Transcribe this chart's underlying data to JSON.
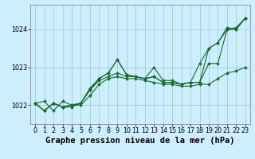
{
  "background_color": "#cceeff",
  "grid_color": "#99ccbb",
  "line_color": "#1a6b2a",
  "title": "Graphe pression niveau de la mer (hPa)",
  "ylim": [
    1021.5,
    1024.65
  ],
  "xlim": [
    -0.5,
    23.5
  ],
  "yticks": [
    1022,
    1023,
    1024
  ],
  "xticks": [
    0,
    1,
    2,
    3,
    4,
    5,
    6,
    7,
    8,
    9,
    10,
    11,
    12,
    13,
    14,
    15,
    16,
    17,
    18,
    19,
    20,
    21,
    22,
    23
  ],
  "series": [
    [
      1022.05,
      1022.1,
      1021.85,
      1022.1,
      1022.0,
      1022.0,
      1022.25,
      1022.55,
      1022.7,
      1022.75,
      1022.7,
      1022.7,
      1022.65,
      1022.6,
      1022.55,
      1022.55,
      1022.5,
      1022.5,
      1022.55,
      1022.55,
      1022.7,
      1022.85,
      1022.9,
      1023.0
    ],
    [
      1022.05,
      1021.85,
      1022.05,
      1021.95,
      1021.95,
      1022.05,
      1022.4,
      1022.65,
      1022.75,
      1022.85,
      1022.75,
      1022.75,
      1022.7,
      1022.75,
      1022.6,
      1022.6,
      1022.55,
      1022.6,
      1022.6,
      1023.1,
      1023.1,
      1024.0,
      1024.0,
      1024.3
    ],
    [
      1022.05,
      1021.85,
      1022.05,
      1021.95,
      1022.0,
      1022.05,
      1022.45,
      1022.7,
      1022.85,
      1023.2,
      1022.8,
      1022.75,
      1022.7,
      1023.0,
      1022.65,
      1022.65,
      1022.55,
      1022.6,
      1023.1,
      1023.5,
      1023.65,
      1024.0,
      1024.05,
      1024.3
    ],
    [
      1022.05,
      1021.85,
      1022.05,
      1021.95,
      1022.0,
      1022.05,
      1022.4,
      1022.7,
      1022.85,
      1023.2,
      1022.8,
      1022.75,
      1022.7,
      1022.75,
      1022.6,
      1022.6,
      1022.55,
      1022.6,
      1022.6,
      1023.5,
      1023.65,
      1024.05,
      1024.0,
      1024.3
    ]
  ],
  "title_fontsize": 7.5,
  "tick_fontsize": 5.8,
  "title_fontweight": "bold"
}
